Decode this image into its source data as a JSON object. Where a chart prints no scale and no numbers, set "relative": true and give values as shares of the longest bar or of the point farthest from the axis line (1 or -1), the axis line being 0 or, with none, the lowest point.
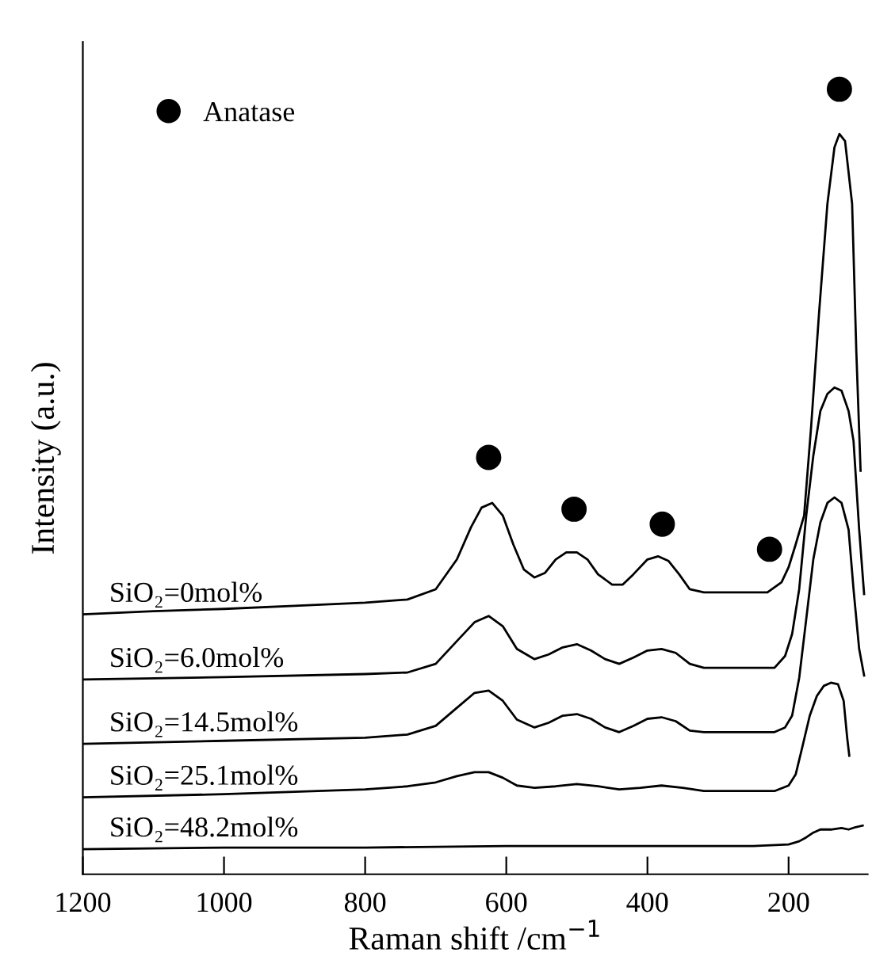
{
  "chart_data": {
    "type": "line",
    "relative": true,
    "xlabel": "Raman shift /cm$^{−1}$",
    "ylabel": "Intensity (a.u.)",
    "xlim": [
      1200,
      88
    ],
    "xticks": [
      1200,
      1000,
      800,
      600,
      400,
      200
    ],
    "legend": "top left",
    "series": [
      {
        "name": "SiO₂=0mol%",
        "color": "#000000",
        "x": [
          1200,
          1100,
          1000,
          900,
          800,
          740,
          700,
          670,
          650,
          635,
          620,
          605,
          590,
          575,
          560,
          545,
          530,
          515,
          500,
          485,
          470,
          450,
          435,
          420,
          400,
          385,
          370,
          355,
          340,
          320,
          260,
          230,
          210,
          200,
          190,
          178,
          168,
          157,
          145,
          135,
          128,
          120,
          110,
          104,
          98
        ],
        "values": [
          0.331,
          0.335,
          0.338,
          0.342,
          0.346,
          0.35,
          0.363,
          0.401,
          0.442,
          0.467,
          0.473,
          0.457,
          0.42,
          0.388,
          0.378,
          0.384,
          0.401,
          0.41,
          0.41,
          0.401,
          0.382,
          0.369,
          0.369,
          0.382,
          0.401,
          0.405,
          0.399,
          0.382,
          0.363,
          0.359,
          0.359,
          0.359,
          0.372,
          0.391,
          0.42,
          0.457,
          0.571,
          0.713,
          0.854,
          0.926,
          0.943,
          0.934,
          0.854,
          0.665,
          0.514
        ]
      },
      {
        "name": "SiO₂=6.0mol%",
        "color": "#000000",
        "x": [
          1200,
          1000,
          800,
          740,
          700,
          670,
          645,
          625,
          605,
          585,
          560,
          540,
          520,
          500,
          480,
          460,
          440,
          420,
          400,
          380,
          360,
          340,
          320,
          260,
          220,
          205,
          195,
          185,
          175,
          165,
          155,
          145,
          135,
          125,
          115,
          108,
          100,
          93
        ],
        "values": [
          0.248,
          0.251,
          0.255,
          0.257,
          0.268,
          0.297,
          0.321,
          0.329,
          0.316,
          0.287,
          0.274,
          0.28,
          0.289,
          0.293,
          0.285,
          0.274,
          0.268,
          0.276,
          0.285,
          0.287,
          0.282,
          0.268,
          0.263,
          0.263,
          0.263,
          0.278,
          0.306,
          0.363,
          0.457,
          0.533,
          0.59,
          0.612,
          0.62,
          0.616,
          0.59,
          0.552,
          0.439,
          0.357
        ]
      },
      {
        "name": "SiO₂=14.5mol%",
        "color": "#000000",
        "x": [
          1200,
          1000,
          800,
          740,
          700,
          670,
          645,
          625,
          605,
          585,
          560,
          540,
          520,
          500,
          480,
          460,
          440,
          420,
          400,
          380,
          360,
          340,
          320,
          260,
          220,
          205,
          195,
          185,
          175,
          165,
          155,
          145,
          135,
          125,
          115,
          108,
          100,
          93
        ],
        "values": [
          0.166,
          0.17,
          0.174,
          0.178,
          0.189,
          0.212,
          0.231,
          0.234,
          0.221,
          0.197,
          0.187,
          0.193,
          0.202,
          0.204,
          0.198,
          0.187,
          0.181,
          0.189,
          0.198,
          0.2,
          0.195,
          0.183,
          0.181,
          0.181,
          0.181,
          0.187,
          0.202,
          0.25,
          0.325,
          0.401,
          0.448,
          0.473,
          0.48,
          0.473,
          0.439,
          0.363,
          0.287,
          0.253
        ]
      },
      {
        "name": "SiO₂=25.1mol%",
        "color": "#000000",
        "x": [
          1200,
          1000,
          800,
          740,
          700,
          670,
          645,
          625,
          605,
          585,
          560,
          530,
          500,
          470,
          440,
          410,
          380,
          350,
          320,
          260,
          220,
          200,
          190,
          180,
          170,
          160,
          150,
          140,
          130,
          122,
          117,
          114
        ],
        "values": [
          0.098,
          0.102,
          0.108,
          0.112,
          0.117,
          0.125,
          0.13,
          0.13,
          0.123,
          0.113,
          0.11,
          0.112,
          0.115,
          0.112,
          0.108,
          0.11,
          0.113,
          0.11,
          0.106,
          0.106,
          0.106,
          0.113,
          0.127,
          0.164,
          0.202,
          0.227,
          0.24,
          0.244,
          0.242,
          0.221,
          0.174,
          0.151
        ]
      },
      {
        "name": "SiO₂=48.2mol%",
        "color": "#000000",
        "x": [
          1200,
          1000,
          800,
          600,
          400,
          250,
          200,
          185,
          175,
          165,
          155,
          140,
          125,
          115,
          105,
          95
        ],
        "values": [
          0.032,
          0.034,
          0.034,
          0.036,
          0.036,
          0.036,
          0.038,
          0.042,
          0.047,
          0.053,
          0.057,
          0.057,
          0.059,
          0.057,
          0.06,
          0.062
        ]
      },
      {
        "name": "Anatase",
        "type": "scatter",
        "marker": "circle",
        "color": "#000000",
        "x": [
          625,
          504,
          379,
          227,
          128
        ],
        "values": [
          0.531,
          0.465,
          0.446,
          0.414,
          1.0
        ]
      }
    ]
  }
}
